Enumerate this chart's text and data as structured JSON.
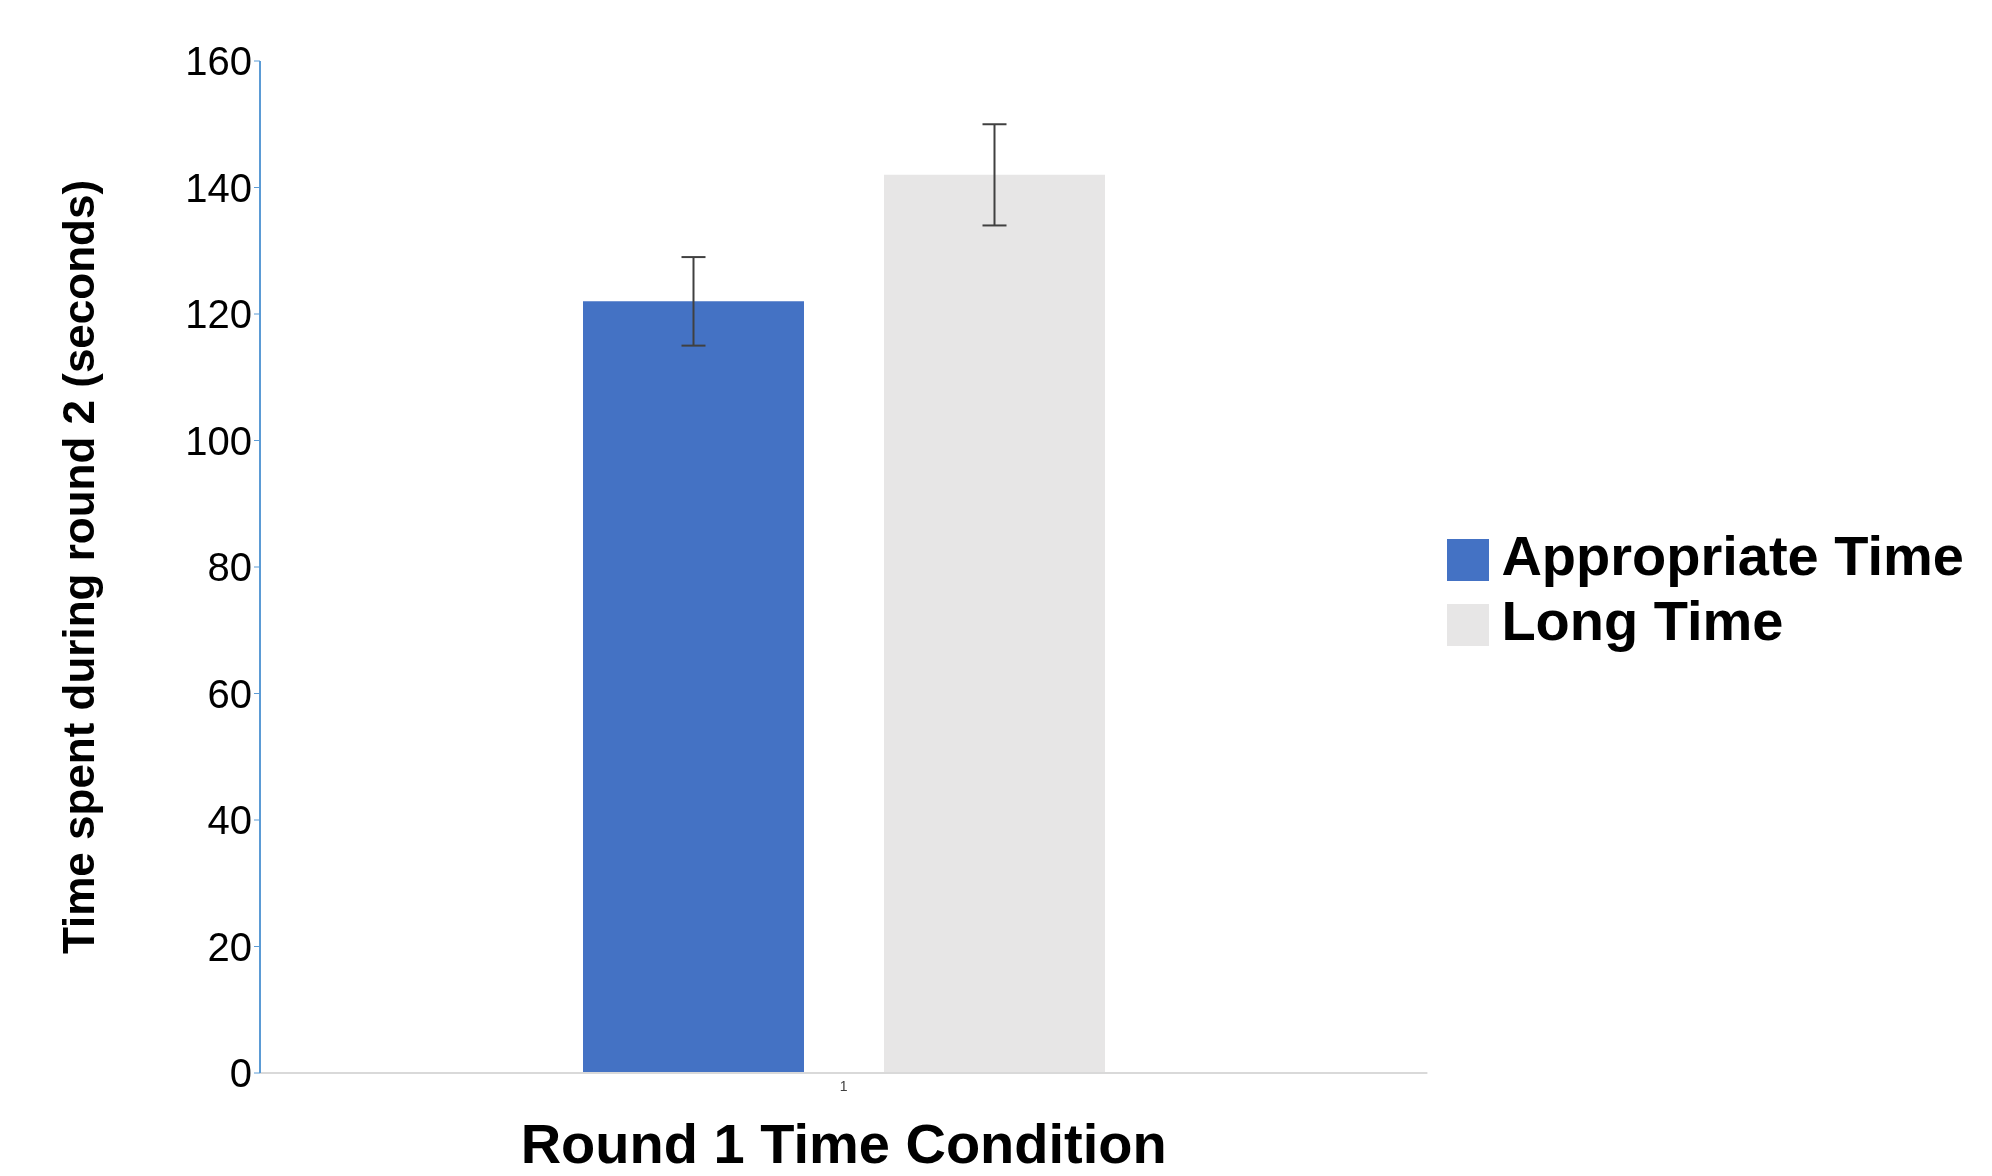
{
  "chart_data": {
    "type": "bar",
    "xlabel": "Round 1 Time Condition",
    "ylabel": "Time spent during round 2 (seconds)",
    "categories": [
      "1"
    ],
    "series": [
      {
        "name": "Appropriate Time",
        "color": "#4472c4",
        "values": [
          122
        ],
        "errors": [
          [
            115,
            129
          ]
        ]
      },
      {
        "name": "Long Time",
        "color": "#e7e6e6",
        "values": [
          142
        ],
        "errors": [
          [
            134,
            150
          ]
        ]
      }
    ],
    "ylim": [
      0,
      160
    ],
    "yticks": [
      0,
      20,
      40,
      60,
      80,
      100,
      120,
      140,
      160
    ],
    "grid": false,
    "legend": "right"
  }
}
